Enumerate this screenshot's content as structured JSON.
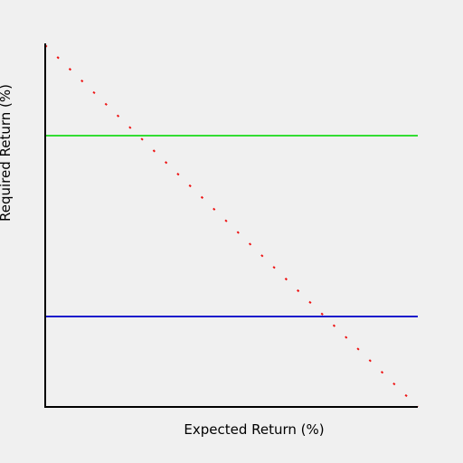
{
  "chart_data": {
    "type": "line",
    "title": "",
    "xlabel": "Expected Return (%)",
    "ylabel": "Required Return (%)",
    "xlim": [
      0,
      100
    ],
    "ylim": [
      0,
      100
    ],
    "grid": false,
    "legend": "none",
    "series": [
      {
        "style": "solid",
        "color": "#33dd33",
        "x": [
          0,
          100
        ],
        "y": [
          75,
          75
        ]
      },
      {
        "style": "solid",
        "color": "#1a1acc",
        "x": [
          0,
          100
        ],
        "y": [
          25,
          25
        ]
      },
      {
        "style": "dotted",
        "color": "#ee1111",
        "x": [
          0,
          100
        ],
        "y": [
          100,
          0
        ]
      }
    ]
  },
  "background_color": "#f0f0f0"
}
